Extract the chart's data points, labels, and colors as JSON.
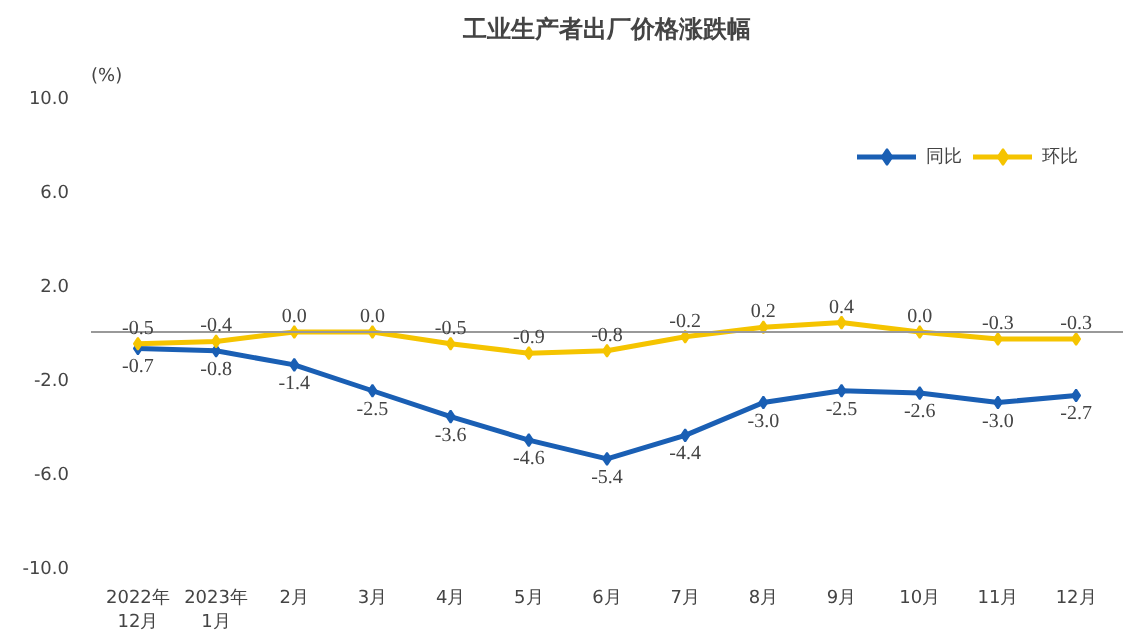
{
  "chart_data": {
    "type": "line",
    "title": "工业生产者出厂价格涨跌幅",
    "ylabel": "(%)",
    "categories": [
      "2022年\n12月",
      "2023年\n1月",
      "2月",
      "3月",
      "4月",
      "5月",
      "6月",
      "7月",
      "8月",
      "9月",
      "10月",
      "11月",
      "12月"
    ],
    "series": [
      {
        "name": "同比",
        "color": "#1a5fb4",
        "values": [
          -0.7,
          -0.8,
          -1.4,
          -2.5,
          -3.6,
          -4.6,
          -5.4,
          -4.4,
          -3.0,
          -2.5,
          -2.6,
          -3.0,
          -2.7
        ],
        "value_labels": [
          "-0.7",
          "-0.8",
          "-1.4",
          "-2.5",
          "-3.6",
          "-4.6",
          "-5.4",
          "-4.4",
          "-3.0",
          "-2.5",
          "-2.6",
          "-3.0",
          "-2.7"
        ]
      },
      {
        "name": "环比",
        "color": "#f5c400",
        "values": [
          -0.5,
          -0.4,
          0.0,
          0.0,
          -0.5,
          -0.9,
          -0.8,
          -0.2,
          0.2,
          0.4,
          0.0,
          -0.3,
          -0.3
        ],
        "value_labels": [
          "-0.5",
          "-0.4",
          "0.0",
          "0.0",
          "-0.5",
          "-0.9",
          "-0.8",
          "-0.2",
          "0.2",
          "0.4",
          "0.0",
          "-0.3",
          "-0.3"
        ]
      }
    ],
    "ylim": [
      -10,
      10
    ],
    "yticks": [
      {
        "value": -10,
        "label": "-10.0"
      },
      {
        "value": -6,
        "label": "-6.0"
      },
      {
        "value": -2,
        "label": "-2.0"
      },
      {
        "value": 2,
        "label": "2.0"
      },
      {
        "value": 6,
        "label": "6.0"
      },
      {
        "value": 10,
        "label": "10.0"
      }
    ],
    "ref_lines": [
      {
        "axis": "y",
        "value": 0,
        "color": "#999999"
      }
    ],
    "marker": "diamond",
    "line_style": "solid",
    "grid": false,
    "legend": "top right"
  }
}
